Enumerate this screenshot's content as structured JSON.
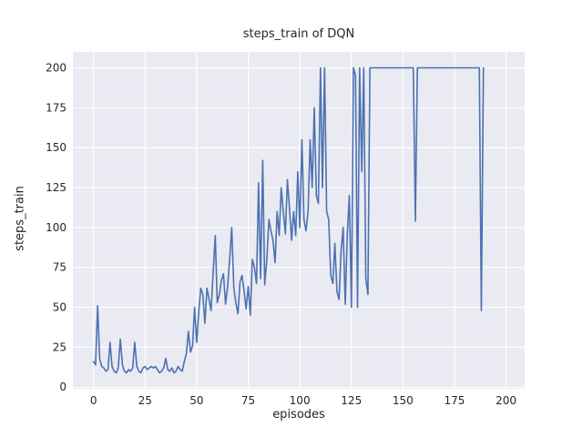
{
  "chart_data": {
    "type": "line",
    "title": "steps_train of DQN",
    "xlabel": "episodes",
    "ylabel": "steps_train",
    "xlim": [
      -10,
      209
    ],
    "ylim": [
      -1,
      210
    ],
    "xticks": [
      0,
      25,
      50,
      75,
      100,
      125,
      150,
      175,
      200
    ],
    "yticks": [
      0,
      25,
      50,
      75,
      100,
      125,
      150,
      175,
      200
    ],
    "grid": "on",
    "legend": "none",
    "x_start": 0,
    "series_name": "steps_train",
    "values": [
      16,
      14,
      51,
      18,
      13,
      12,
      10,
      11,
      28,
      13,
      10,
      9,
      12,
      30,
      14,
      10,
      9,
      11,
      10,
      12,
      28,
      13,
      10,
      9,
      12,
      13,
      11,
      12,
      13,
      12,
      13,
      11,
      9,
      10,
      12,
      18,
      11,
      10,
      12,
      9,
      10,
      13,
      11,
      10,
      16,
      21,
      35,
      22,
      26,
      50,
      28,
      47,
      62,
      58,
      40,
      62,
      55,
      48,
      72,
      95,
      53,
      58,
      67,
      71,
      52,
      63,
      80,
      100,
      62,
      53,
      46,
      66,
      70,
      60,
      49,
      63,
      45,
      80,
      75,
      65,
      128,
      68,
      142,
      64,
      80,
      105,
      98,
      92,
      78,
      110,
      95,
      125,
      110,
      96,
      130,
      112,
      92,
      110,
      95,
      135,
      100,
      155,
      105,
      98,
      110,
      155,
      125,
      175,
      120,
      115,
      200,
      125,
      200,
      110,
      105,
      70,
      65,
      90,
      60,
      55,
      85,
      100,
      52,
      95,
      120,
      50,
      200,
      195,
      50,
      200,
      135,
      200,
      68,
      58,
      200,
      200,
      200,
      200,
      200,
      200,
      200,
      200,
      200,
      200,
      200,
      200,
      200,
      200,
      200,
      200,
      200,
      200,
      200,
      200,
      200,
      200,
      104,
      200,
      200,
      200,
      200,
      200,
      200,
      200,
      200,
      200,
      200,
      200,
      200,
      200,
      200,
      200,
      200,
      200,
      200,
      200,
      200,
      200,
      200,
      200,
      200,
      200,
      200,
      200,
      200,
      200,
      200,
      200,
      48,
      200
    ],
    "colors": {
      "line": "#4c72b0",
      "axes_bg": "#eaeaf2",
      "grid": "#ffffff",
      "text": "#262626",
      "figure_bg": "#ffffff"
    }
  }
}
